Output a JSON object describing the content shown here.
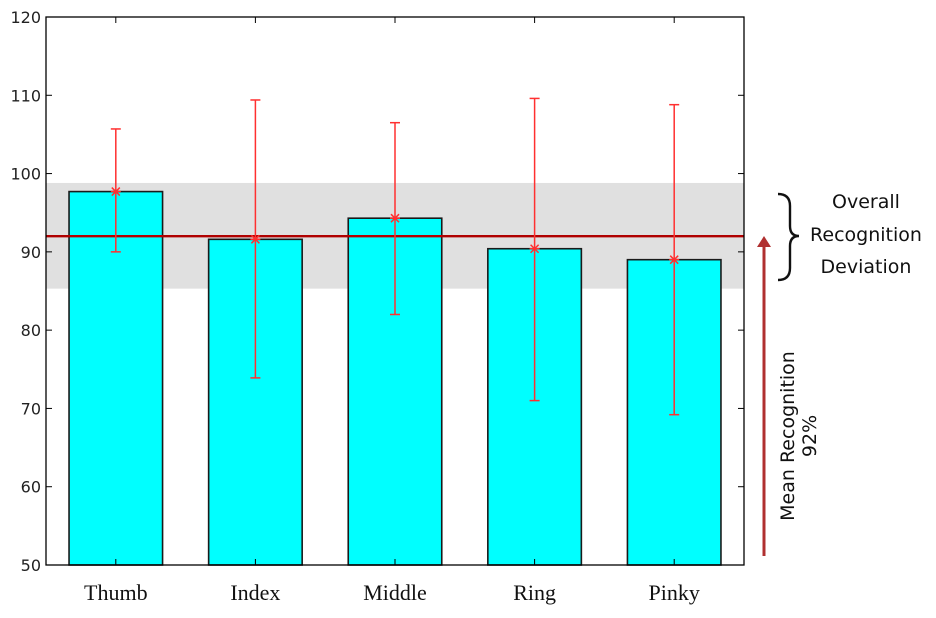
{
  "chart_data": {
    "type": "bar",
    "categories": [
      "Thumb",
      "Index",
      "Middle",
      "Ring",
      "Pinky"
    ],
    "values": [
      97.7,
      91.6,
      94.3,
      90.4,
      89.0
    ],
    "error_upper": [
      105.7,
      109.4,
      106.5,
      109.6,
      108.8
    ],
    "error_lower": [
      90.0,
      73.9,
      82.0,
      71.0,
      69.2
    ],
    "ylim": [
      50,
      120
    ],
    "yticks": [
      "50",
      "60",
      "70",
      "80",
      "90",
      "100",
      "110",
      "120"
    ],
    "mean_line": 92,
    "deviation_band": [
      85.3,
      98.8
    ],
    "title": "",
    "xlabel": "",
    "ylabel": "",
    "grid": false,
    "colors": {
      "bar_fill": "#00ffff",
      "bar_stroke": "#1a1a1a",
      "error_bar": "#ff3030",
      "mean_line": "#b00000",
      "band": "#e0e0e0",
      "arrow": "#b03030"
    },
    "annotations": {
      "deviation_label": [
        "Overall",
        "Recognition",
        "Deviation"
      ],
      "mean_label": [
        "Mean Recognition",
        "92%"
      ]
    }
  }
}
